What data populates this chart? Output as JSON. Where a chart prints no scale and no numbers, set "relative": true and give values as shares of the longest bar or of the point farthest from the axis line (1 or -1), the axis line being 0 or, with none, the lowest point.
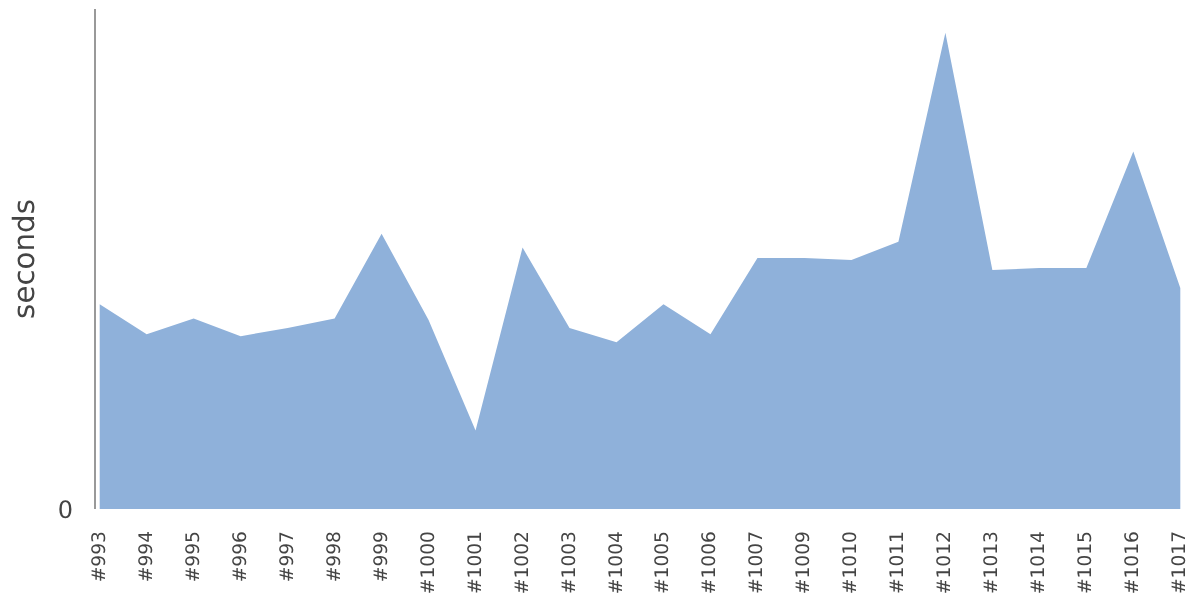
{
  "chart_data": {
    "type": "area",
    "ylabel": "seconds",
    "relative": true,
    "annotations": [
      "0"
    ],
    "color": "#8fb1da",
    "categories": [
      "#993",
      "#994",
      "#995",
      "#996",
      "#997",
      "#998",
      "#999",
      "#1000",
      "#1001",
      "#1002",
      "#1003",
      "#1004",
      "#1005",
      "#1006",
      "#1007",
      "#1009",
      "#1010",
      "#1011",
      "#1012",
      "#1013",
      "#1014",
      "#1015",
      "#1016",
      "#1017"
    ],
    "values": [
      0.43,
      0.367,
      0.4,
      0.363,
      0.38,
      0.4,
      0.578,
      0.397,
      0.165,
      0.549,
      0.38,
      0.35,
      0.43,
      0.367,
      0.527,
      0.527,
      0.523,
      0.561,
      1,
      0.502,
      0.506,
      0.506,
      0.751,
      0.464
    ]
  }
}
